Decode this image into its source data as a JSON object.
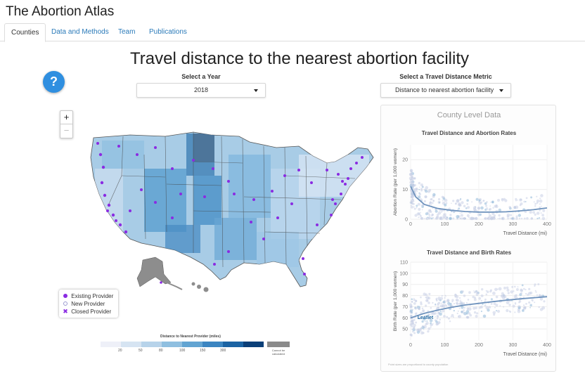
{
  "app": {
    "title": "The Abortion Atlas"
  },
  "tabs": [
    {
      "label": "Counties",
      "active": true
    },
    {
      "label": "Data and Methods",
      "active": false
    },
    {
      "label": "Team",
      "active": false
    },
    {
      "label": "Publications",
      "active": false
    }
  ],
  "page": {
    "title": "Travel distance to the nearest abortion facility"
  },
  "help": {
    "label": "?"
  },
  "controls": {
    "year": {
      "label": "Select a Year",
      "value": "2018"
    },
    "metric": {
      "label": "Select a Travel Distance Metric",
      "value": "Distance to nearest abortion facility"
    }
  },
  "zoom": {
    "in_label": "+",
    "out_label": "−"
  },
  "map_legend": {
    "items": [
      {
        "label": "Existing Provider",
        "icon": "filled-purple-dot"
      },
      {
        "label": "New Provider",
        "icon": "open-circle"
      },
      {
        "label": "Closed Provider",
        "icon": "purple-x"
      }
    ]
  },
  "color_scale": {
    "title": "Distance to Nearest Provider (miles)",
    "ticks": [
      "20",
      "50",
      "80",
      "100",
      "150",
      "300"
    ],
    "colors": [
      "#eef0f8",
      "#d6e4f2",
      "#b7d3ea",
      "#8fbfe0",
      "#62a4d2",
      "#3b85c1",
      "#1b63a3",
      "#0b3f78"
    ],
    "na_label": "Cannot be calculated",
    "na_color": "#8a8a8a"
  },
  "panel": {
    "title": "County Level Data",
    "footnote": "Point sizes are proportional to county population"
  },
  "chart_data": [
    {
      "type": "scatter",
      "title": "Travel Distance and Abortion Rates",
      "xlabel": "Travel Distance (mi)",
      "ylabel": "Abortion Rate (per 1,000 women)",
      "xlim": [
        0,
        400
      ],
      "ylim": [
        0,
        25
      ],
      "xticks": [
        "0",
        "100",
        "200",
        "300",
        "400"
      ],
      "yticks": [
        "0",
        "10",
        "20"
      ],
      "trend": {
        "x": [
          0,
          15,
          40,
          80,
          120,
          160,
          200,
          240,
          280,
          320,
          360,
          400
        ],
        "y": [
          11,
          7.5,
          5,
          3.6,
          3.0,
          2.6,
          2.4,
          2.4,
          2.5,
          2.8,
          3.2,
          3.8
        ]
      }
    },
    {
      "type": "scatter",
      "title": "Travel Distance and Birth Rates",
      "xlabel": "Travel Distance (mi)",
      "ylabel": "Birth Rate (per 1,000 women)",
      "xlim": [
        0,
        400
      ],
      "ylim": [
        40,
        110
      ],
      "xticks": [
        "0",
        "100",
        "200",
        "300",
        "400"
      ],
      "yticks": [
        "50",
        "60",
        "70",
        "80",
        "90",
        "100",
        "110"
      ],
      "trend": {
        "x": [
          0,
          40,
          80,
          120,
          160,
          200,
          240,
          280,
          320,
          360,
          400
        ],
        "y": [
          60,
          64,
          67,
          69.5,
          71.5,
          73,
          74.5,
          75.8,
          77,
          78,
          79
        ]
      },
      "annotation": "Leaflet"
    }
  ]
}
